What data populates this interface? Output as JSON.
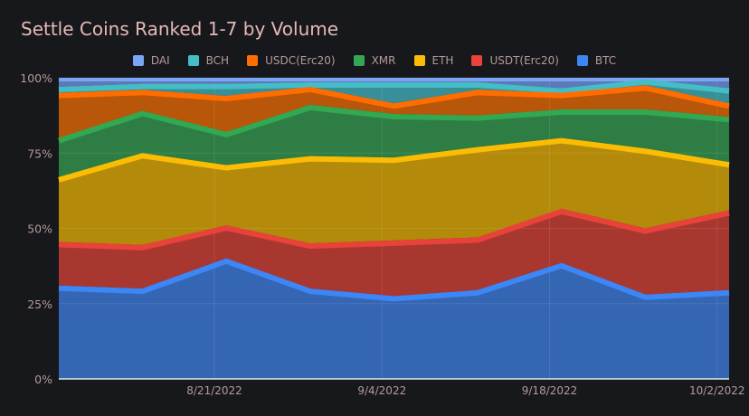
{
  "chart_data": {
    "type": "area",
    "stacked": true,
    "normalized": true,
    "title": "Settle Coins Ranked 1-7 by Volume",
    "xlabel": "",
    "ylabel": "",
    "ylim": [
      0,
      100
    ],
    "yticks": [
      "0%",
      "25%",
      "50%",
      "75%",
      "100%"
    ],
    "ytick_values": [
      0,
      25,
      50,
      75,
      100
    ],
    "xticks": [
      "8/21/2022",
      "9/4/2022",
      "9/18/2022",
      "10/2/2022"
    ],
    "xtick_days": [
      13,
      27,
      41,
      55
    ],
    "x_day_offsets": [
      0,
      7,
      14,
      21,
      28,
      35,
      42,
      49,
      56
    ],
    "x_range_days": [
      0,
      56
    ],
    "grid": true,
    "legend_position": "top-center",
    "series": [
      {
        "name": "BTC",
        "color": "#3d86f5",
        "fill": "#3566b4",
        "values": [
          31,
          30,
          40,
          30,
          27.5,
          29.5,
          38.5,
          28,
          29.5
        ]
      },
      {
        "name": "USDT(Erc20)",
        "color": "#e8423a",
        "fill": "#a83730",
        "values": [
          14.5,
          14.5,
          11,
          15,
          18.5,
          17.5,
          18,
          22,
          26.5
        ]
      },
      {
        "name": "ETH",
        "color": "#fbbd04",
        "fill": "#b48a0a",
        "values": [
          21.5,
          30.5,
          20,
          29,
          27.5,
          30,
          23.5,
          26.5,
          16
        ]
      },
      {
        "name": "XMR",
        "color": "#32a852",
        "fill": "#2e7d44",
        "values": [
          13,
          14,
          11,
          17,
          14.5,
          10.5,
          9.5,
          13,
          15
        ]
      },
      {
        "name": "USDC(Erc20)",
        "color": "#ff6d01",
        "fill": "#b85609",
        "values": [
          15,
          7,
          12,
          6,
          3.5,
          8.5,
          5.5,
          8,
          4.5
        ]
      },
      {
        "name": "BCH",
        "color": "#45bdc6",
        "fill": "#388f97",
        "values": [
          2,
          2,
          4,
          1.5,
          7,
          2.5,
          1.5,
          2,
          5
        ]
      },
      {
        "name": "DAI",
        "color": "#7aa6f5",
        "fill": "#5d7ab8",
        "values": [
          3,
          2,
          2,
          1.5,
          1.5,
          1.5,
          3.5,
          0.5,
          3.5
        ]
      }
    ],
    "legend_order": [
      "DAI",
      "BCH",
      "USDC(Erc20)",
      "XMR",
      "ETH",
      "USDT(Erc20)",
      "BTC"
    ]
  }
}
